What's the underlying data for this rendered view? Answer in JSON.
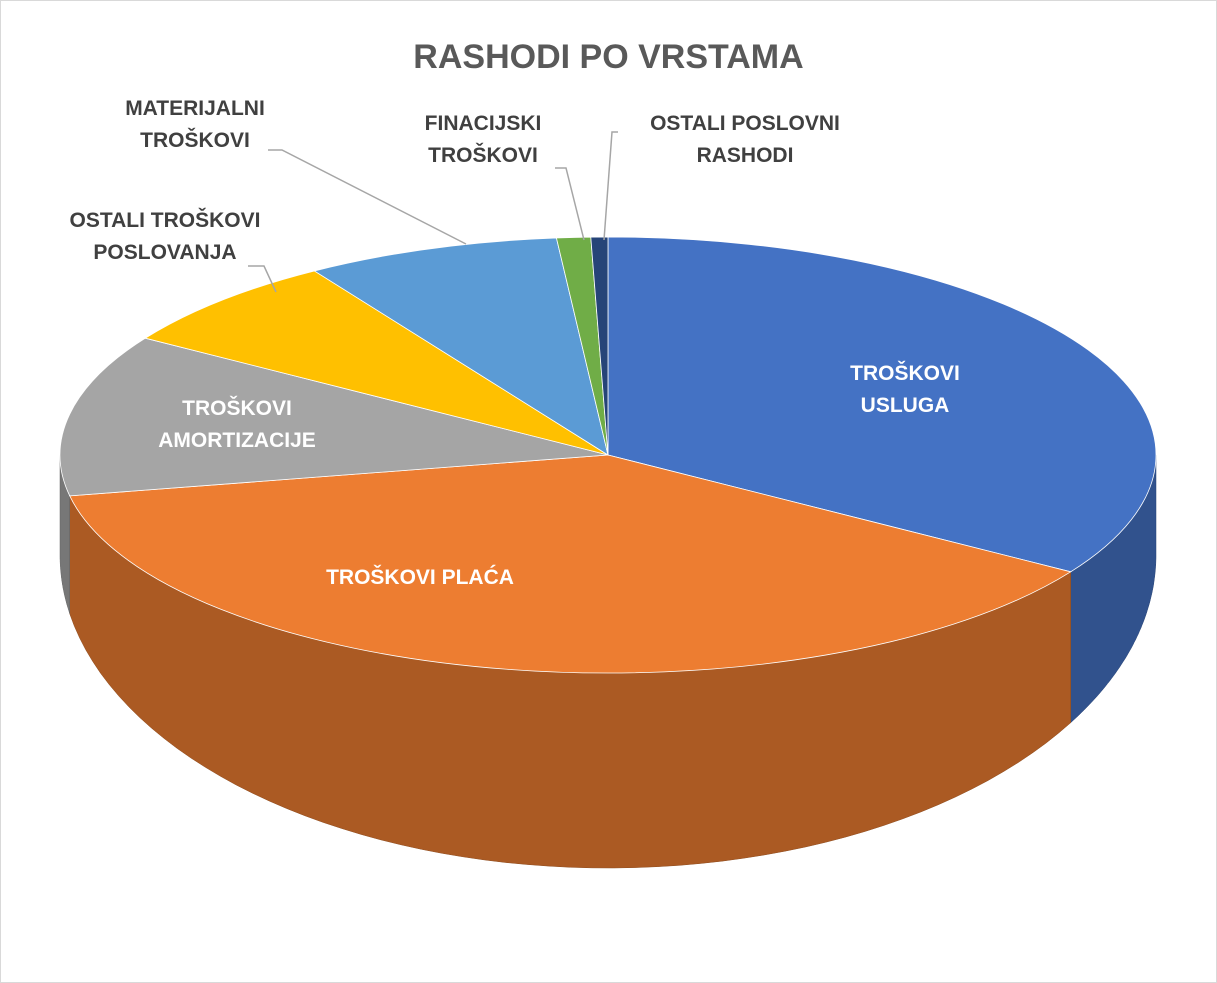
{
  "chart_data": {
    "type": "pie",
    "title": "RASHODI PO VRSTAMA",
    "categories": [
      "TROŠKOVI USLUGA",
      "TROŠKOVI PLAĆA",
      "TROŠKOVI AMORTIZACIJE",
      "OSTALI TROŠKOVI POSLOVANJA",
      "MATERIJALNI TROŠKOVI",
      "FINACIJSKI TROŠKOVI",
      "OSTALI POSLOVNI RASHODI"
    ],
    "values": [
      34,
      38,
      12,
      7,
      7.5,
      1,
      0.5
    ],
    "colors": [
      "#4472c4",
      "#ed7d31",
      "#a5a5a5",
      "#ffc000",
      "#5b9bd5",
      "#70ad47",
      "#264478"
    ]
  }
}
